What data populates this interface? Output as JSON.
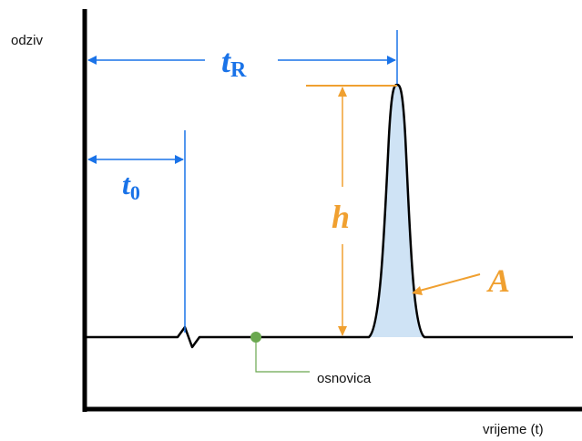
{
  "axes": {
    "y_label": "odziv",
    "x_label": "vrijeme (t)"
  },
  "markers": {
    "retention_time": {
      "symbol": "t",
      "subscript": "R"
    },
    "dead_time": {
      "symbol": "t",
      "subscript": "0"
    },
    "peak_height": {
      "symbol": "h"
    },
    "peak_area": {
      "symbol": "A"
    },
    "baseline": {
      "label": "osnovica"
    }
  },
  "colors": {
    "axis": "#000000",
    "time_marker": "#1a73e8",
    "height_marker": "#f0a030",
    "area_marker": "#f0a030",
    "peak_fill": "#cfe3f5",
    "baseline_marker": "#6aa84f"
  }
}
